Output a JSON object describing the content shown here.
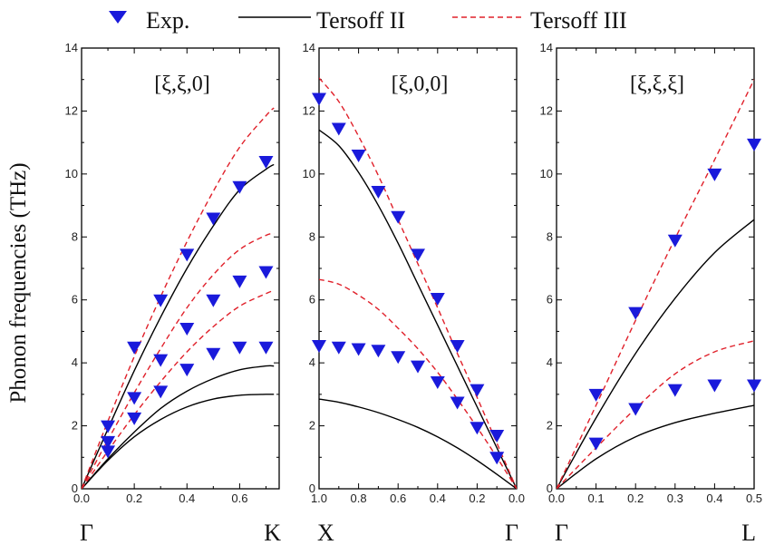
{
  "legend": [
    {
      "key": "exp",
      "label": "Exp.",
      "kind": "marker",
      "color": "#1a1adb"
    },
    {
      "key": "t2",
      "label": "Tersoff II",
      "kind": "solid",
      "color": "#000000"
    },
    {
      "key": "t3",
      "label": "Tersoff III",
      "kind": "dashed",
      "color": "#e0202a"
    }
  ],
  "ylabel": "Phonon frequencies (THz)",
  "chart_data": [
    {
      "type": "line",
      "title": "[ξ,ξ,0]",
      "xlim": [
        0,
        0.75
      ],
      "ylim": [
        0,
        14
      ],
      "xticks": [
        "0.0",
        "0.2",
        "0.4",
        "0.6"
      ],
      "xtick_values": [
        0,
        0.2,
        0.4,
        0.6
      ],
      "yticks": [
        "0",
        "2",
        "4",
        "6",
        "8",
        "10",
        "12",
        "14"
      ],
      "left_symbol": "Γ",
      "right_symbol": "K",
      "series": [
        {
          "name": "Exp.",
          "style": "marker",
          "points": [
            [
              0.1,
              2.0
            ],
            [
              0.2,
              4.5
            ],
            [
              0.3,
              6.0
            ],
            [
              0.4,
              7.45
            ],
            [
              0.5,
              8.6
            ],
            [
              0.6,
              9.6
            ],
            [
              0.7,
              10.4
            ],
            [
              0.1,
              1.5
            ],
            [
              0.2,
              2.9
            ],
            [
              0.3,
              4.1
            ],
            [
              0.4,
              5.1
            ],
            [
              0.5,
              6.0
            ],
            [
              0.6,
              6.6
            ],
            [
              0.7,
              6.9
            ],
            [
              0.1,
              1.2
            ],
            [
              0.2,
              2.25
            ],
            [
              0.3,
              3.1
            ],
            [
              0.4,
              3.8
            ],
            [
              0.5,
              4.3
            ],
            [
              0.6,
              4.5
            ],
            [
              0.7,
              4.5
            ]
          ]
        },
        {
          "name": "Tersoff II",
          "style": "solid",
          "points": [
            [
              0,
              0
            ],
            [
              0.1,
              1.9
            ],
            [
              0.2,
              3.75
            ],
            [
              0.3,
              5.45
            ],
            [
              0.4,
              7.0
            ],
            [
              0.5,
              8.35
            ],
            [
              0.6,
              9.5
            ],
            [
              0.7,
              10.15
            ],
            [
              0.73,
              10.3
            ]
          ]
        },
        {
          "name": "Tersoff II",
          "style": "solid",
          "points": [
            [
              0,
              0
            ],
            [
              0.1,
              0.95
            ],
            [
              0.2,
              1.8
            ],
            [
              0.3,
              2.55
            ],
            [
              0.4,
              3.1
            ],
            [
              0.5,
              3.5
            ],
            [
              0.6,
              3.78
            ],
            [
              0.7,
              3.9
            ],
            [
              0.73,
              3.9
            ]
          ]
        },
        {
          "name": "Tersoff II",
          "style": "solid",
          "points": [
            [
              0,
              0
            ],
            [
              0.1,
              0.9
            ],
            [
              0.2,
              1.65
            ],
            [
              0.3,
              2.2
            ],
            [
              0.4,
              2.6
            ],
            [
              0.5,
              2.85
            ],
            [
              0.6,
              2.97
            ],
            [
              0.7,
              3.0
            ],
            [
              0.73,
              3.0
            ]
          ]
        },
        {
          "name": "Tersoff III",
          "style": "dashed",
          "points": [
            [
              0,
              0
            ],
            [
              0.1,
              2.15
            ],
            [
              0.2,
              4.2
            ],
            [
              0.3,
              6.1
            ],
            [
              0.4,
              7.85
            ],
            [
              0.5,
              9.45
            ],
            [
              0.6,
              10.85
            ],
            [
              0.7,
              11.85
            ],
            [
              0.73,
              12.1
            ]
          ]
        },
        {
          "name": "Tersoff III",
          "style": "dashed",
          "points": [
            [
              0,
              0
            ],
            [
              0.1,
              1.55
            ],
            [
              0.2,
              3.05
            ],
            [
              0.3,
              4.45
            ],
            [
              0.4,
              5.75
            ],
            [
              0.5,
              6.8
            ],
            [
              0.6,
              7.6
            ],
            [
              0.7,
              8.05
            ],
            [
              0.73,
              8.1
            ]
          ]
        },
        {
          "name": "Tersoff III",
          "style": "dashed",
          "points": [
            [
              0,
              0
            ],
            [
              0.1,
              1.2
            ],
            [
              0.2,
              2.35
            ],
            [
              0.3,
              3.4
            ],
            [
              0.4,
              4.35
            ],
            [
              0.5,
              5.15
            ],
            [
              0.6,
              5.8
            ],
            [
              0.7,
              6.2
            ],
            [
              0.73,
              6.3
            ]
          ]
        }
      ]
    },
    {
      "type": "line",
      "title": "[ξ,0,0]",
      "xlim": [
        1.0,
        0.0
      ],
      "ylim": [
        0,
        14
      ],
      "xticks": [
        "1.0",
        "0.8",
        "0.6",
        "0.4",
        "0.2",
        "0.0"
      ],
      "xtick_values": [
        1.0,
        0.8,
        0.6,
        0.4,
        0.2,
        0.0
      ],
      "yticks": [
        "0",
        "2",
        "4",
        "6",
        "8",
        "10",
        "12",
        "14"
      ],
      "left_symbol": "X",
      "right_symbol": "Γ",
      "series": [
        {
          "name": "Exp.",
          "style": "marker",
          "points": [
            [
              1.0,
              12.4
            ],
            [
              0.9,
              11.45
            ],
            [
              0.8,
              10.6
            ],
            [
              0.7,
              9.45
            ],
            [
              0.6,
              8.65
            ],
            [
              0.5,
              7.45
            ],
            [
              0.4,
              6.05
            ],
            [
              0.3,
              4.55
            ],
            [
              0.2,
              3.15
            ],
            [
              0.1,
              1.7
            ],
            [
              1.0,
              4.55
            ],
            [
              0.9,
              4.5
            ],
            [
              0.8,
              4.45
            ],
            [
              0.7,
              4.4
            ],
            [
              0.6,
              4.2
            ],
            [
              0.5,
              3.9
            ],
            [
              0.4,
              3.4
            ],
            [
              0.3,
              2.75
            ],
            [
              0.2,
              1.95
            ],
            [
              0.1,
              1.0
            ]
          ]
        },
        {
          "name": "Tersoff II",
          "style": "solid",
          "points": [
            [
              1.0,
              11.4
            ],
            [
              0.9,
              10.9
            ],
            [
              0.8,
              10.05
            ],
            [
              0.7,
              9.0
            ],
            [
              0.6,
              7.8
            ],
            [
              0.5,
              6.5
            ],
            [
              0.4,
              5.2
            ],
            [
              0.3,
              3.9
            ],
            [
              0.2,
              2.6
            ],
            [
              0.1,
              1.3
            ],
            [
              0.0,
              0
            ]
          ]
        },
        {
          "name": "Tersoff II",
          "style": "solid",
          "points": [
            [
              1.0,
              2.85
            ],
            [
              0.9,
              2.75
            ],
            [
              0.8,
              2.6
            ],
            [
              0.7,
              2.42
            ],
            [
              0.6,
              2.2
            ],
            [
              0.5,
              1.95
            ],
            [
              0.4,
              1.65
            ],
            [
              0.3,
              1.3
            ],
            [
              0.2,
              0.9
            ],
            [
              0.1,
              0.46
            ],
            [
              0.0,
              0
            ]
          ]
        },
        {
          "name": "Tersoff III",
          "style": "dashed",
          "points": [
            [
              1.0,
              13.05
            ],
            [
              0.9,
              12.3
            ],
            [
              0.8,
              11.2
            ],
            [
              0.7,
              9.95
            ],
            [
              0.6,
              8.55
            ],
            [
              0.5,
              7.15
            ],
            [
              0.4,
              5.75
            ],
            [
              0.3,
              4.3
            ],
            [
              0.2,
              2.9
            ],
            [
              0.1,
              1.45
            ],
            [
              0.0,
              0
            ]
          ]
        },
        {
          "name": "Tersoff III",
          "style": "dashed",
          "points": [
            [
              1.0,
              6.65
            ],
            [
              0.9,
              6.5
            ],
            [
              0.8,
              6.15
            ],
            [
              0.7,
              5.7
            ],
            [
              0.6,
              5.1
            ],
            [
              0.5,
              4.45
            ],
            [
              0.4,
              3.7
            ],
            [
              0.3,
              2.85
            ],
            [
              0.2,
              1.95
            ],
            [
              0.1,
              1.0
            ],
            [
              0.0,
              0
            ]
          ]
        }
      ]
    },
    {
      "type": "line",
      "title": "[ξ,ξ,ξ]",
      "xlim": [
        0,
        0.5
      ],
      "ylim": [
        0,
        14
      ],
      "xticks": [
        "0.0",
        "0.1",
        "0.2",
        "0.3",
        "0.4",
        "0.5"
      ],
      "xtick_values": [
        0,
        0.1,
        0.2,
        0.3,
        0.4,
        0.5
      ],
      "yticks": [
        "0",
        "2",
        "4",
        "6",
        "8",
        "10",
        "12",
        "14"
      ],
      "left_symbol": "Γ",
      "right_symbol": "L",
      "series": [
        {
          "name": "Exp.",
          "style": "marker",
          "points": [
            [
              0.1,
              3.0
            ],
            [
              0.2,
              5.6
            ],
            [
              0.3,
              7.9
            ],
            [
              0.4,
              10.0
            ],
            [
              0.5,
              10.95
            ],
            [
              0.1,
              1.45
            ],
            [
              0.2,
              2.55
            ],
            [
              0.3,
              3.15
            ],
            [
              0.4,
              3.3
            ],
            [
              0.5,
              3.3
            ]
          ]
        },
        {
          "name": "Tersoff II",
          "style": "solid",
          "points": [
            [
              0,
              0
            ],
            [
              0.1,
              2.25
            ],
            [
              0.2,
              4.3
            ],
            [
              0.3,
              6.05
            ],
            [
              0.4,
              7.5
            ],
            [
              0.5,
              8.55
            ]
          ]
        },
        {
          "name": "Tersoff II",
          "style": "solid",
          "points": [
            [
              0,
              0
            ],
            [
              0.1,
              0.95
            ],
            [
              0.2,
              1.65
            ],
            [
              0.3,
              2.1
            ],
            [
              0.4,
              2.4
            ],
            [
              0.5,
              2.65
            ]
          ]
        },
        {
          "name": "Tersoff III",
          "style": "dashed",
          "points": [
            [
              0,
              0
            ],
            [
              0.1,
              2.65
            ],
            [
              0.2,
              5.35
            ],
            [
              0.3,
              7.95
            ],
            [
              0.4,
              10.45
            ],
            [
              0.5,
              13.0
            ]
          ]
        },
        {
          "name": "Tersoff III",
          "style": "dashed",
          "points": [
            [
              0,
              0
            ],
            [
              0.1,
              1.3
            ],
            [
              0.2,
              2.55
            ],
            [
              0.3,
              3.65
            ],
            [
              0.4,
              4.35
            ],
            [
              0.5,
              4.7
            ]
          ]
        }
      ]
    }
  ]
}
